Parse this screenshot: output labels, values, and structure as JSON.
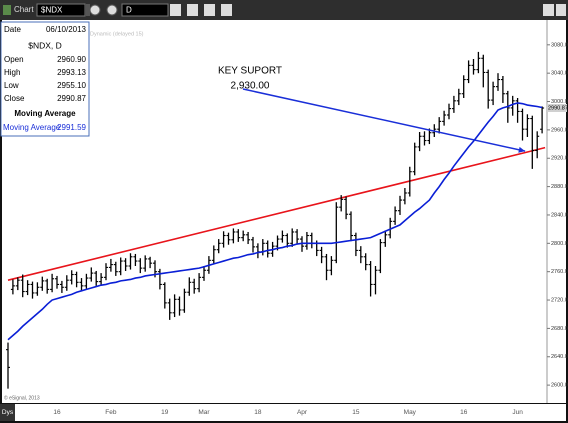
{
  "toolbar": {
    "title": "Chart",
    "interval": "D"
  },
  "info_panel": {
    "date_label": "Date",
    "date": "06/10/2013",
    "symbol": "$NDX, D",
    "rows": [
      {
        "label": "Open",
        "value": "2960.90"
      },
      {
        "label": "High",
        "value": "2993.13"
      },
      {
        "label": "Low",
        "value": "2955.10"
      },
      {
        "label": "Close",
        "value": "2990.87"
      }
    ],
    "study_row": {
      "label": "Moving Average",
      "value": "2991.59"
    }
  },
  "status_text": "Dynamic (delayed 15)",
  "copyright": "© eSignal, 2013",
  "chart_data": {
    "type": "ohlc",
    "x_label": "Dys",
    "categories": [
      null,
      null,
      null,
      null,
      null,
      null,
      null,
      null,
      null,
      null,
      "16",
      null,
      null,
      null,
      null,
      null,
      null,
      null,
      null,
      null,
      null,
      "Feb",
      null,
      null,
      null,
      null,
      null,
      null,
      null,
      null,
      null,
      null,
      "19",
      null,
      null,
      null,
      null,
      null,
      null,
      null,
      "Mar",
      null,
      null,
      null,
      null,
      null,
      null,
      null,
      null,
      null,
      null,
      "18",
      null,
      null,
      null,
      null,
      null,
      null,
      null,
      null,
      "Apr",
      null,
      null,
      null,
      null,
      null,
      null,
      null,
      null,
      null,
      null,
      "15",
      null,
      null,
      null,
      null,
      null,
      null,
      null,
      null,
      null,
      null,
      "May",
      null,
      null,
      null,
      null,
      null,
      null,
      null,
      null,
      null,
      null,
      "16",
      null,
      null,
      null,
      null,
      null,
      null,
      null,
      null,
      null,
      null,
      "Jun",
      null,
      null,
      null,
      null,
      null
    ],
    "series": [
      {
        "name": "$NDX",
        "color": "#000000",
        "open": [
          2650,
          2735,
          2740,
          2748,
          2732,
          2742,
          2730,
          2738,
          2747,
          2735,
          2750,
          2742,
          2738,
          2748,
          2756,
          2745,
          2740,
          2751,
          2758,
          2746,
          2752,
          2766,
          2770,
          2760,
          2775,
          2768,
          2781,
          2775,
          2765,
          2778,
          2772,
          2760,
          2742,
          2716,
          2702,
          2721,
          2706,
          2731,
          2745,
          2736,
          2752,
          2762,
          2776,
          2791,
          2800,
          2811,
          2805,
          2816,
          2808,
          2812,
          2805,
          2795,
          2788,
          2800,
          2786,
          2796,
          2806,
          2811,
          2800,
          2816,
          2806,
          2796,
          2811,
          2800,
          2790,
          2781,
          2762,
          2776,
          2851,
          2862,
          2841,
          2811,
          2790,
          2781,
          2770,
          2742,
          2762,
          2801,
          2812,
          2831,
          2846,
          2861,
          2871,
          2901,
          2936,
          2951,
          2945,
          2956,
          2961,
          2972,
          2981,
          2990,
          3001,
          3011,
          3031,
          3051,
          3045,
          3061,
          3041,
          3002,
          3021,
          3031,
          3011,
          2991,
          3001,
          2986,
          2961,
          2976,
          2931,
          2960.9
        ],
        "high": [
          2660,
          2749,
          2752,
          2756,
          2748,
          2746,
          2745,
          2753,
          2750,
          2757,
          2754,
          2747,
          2755,
          2762,
          2760,
          2751,
          2757,
          2766,
          2761,
          2758,
          2772,
          2778,
          2774,
          2780,
          2779,
          2786,
          2785,
          2779,
          2783,
          2781,
          2776,
          2764,
          2745,
          2722,
          2728,
          2725,
          2736,
          2752,
          2750,
          2758,
          2768,
          2782,
          2797,
          2806,
          2817,
          2815,
          2821,
          2820,
          2818,
          2816,
          2809,
          2800,
          2806,
          2804,
          2802,
          2811,
          2818,
          2814,
          2821,
          2820,
          2810,
          2816,
          2815,
          2804,
          2795,
          2785,
          2782,
          2858,
          2868,
          2866,
          2845,
          2815,
          2796,
          2786,
          2775,
          2768,
          2806,
          2818,
          2836,
          2852,
          2867,
          2878,
          2908,
          2942,
          2957,
          2958,
          2962,
          2968,
          2978,
          2987,
          2997,
          3008,
          3018,
          3037,
          3058,
          3060,
          3070,
          3066,
          3045,
          3028,
          3040,
          3036,
          3015,
          3008,
          3005,
          2990,
          2982,
          2980,
          2958,
          2993.13
        ],
        "low": [
          2595,
          2728,
          2734,
          2724,
          2727,
          2722,
          2726,
          2733,
          2729,
          2731,
          2736,
          2730,
          2733,
          2742,
          2738,
          2733,
          2736,
          2746,
          2740,
          2741,
          2748,
          2760,
          2754,
          2755,
          2761,
          2763,
          2768,
          2758,
          2760,
          2765,
          2752,
          2735,
          2708,
          2692,
          2696,
          2698,
          2702,
          2726,
          2729,
          2731,
          2747,
          2757,
          2771,
          2786,
          2794,
          2798,
          2800,
          2802,
          2803,
          2799,
          2787,
          2779,
          2783,
          2780,
          2781,
          2790,
          2801,
          2794,
          2795,
          2799,
          2788,
          2791,
          2793,
          2782,
          2772,
          2748,
          2755,
          2772,
          2845,
          2834,
          2803,
          2782,
          2772,
          2762,
          2725,
          2728,
          2758,
          2795,
          2807,
          2826,
          2840,
          2855,
          2866,
          2896,
          2930,
          2938,
          2940,
          2950,
          2955,
          2966,
          2975,
          2984,
          2995,
          3005,
          3026,
          3038,
          3040,
          3020,
          2990,
          2995,
          3015,
          2998,
          2970,
          2980,
          2970,
          2945,
          2950,
          2905,
          2920,
          2955.1
        ],
        "close": [
          2625,
          2740,
          2748,
          2732,
          2742,
          2730,
          2738,
          2747,
          2735,
          2750,
          2742,
          2738,
          2748,
          2756,
          2745,
          2740,
          2751,
          2758,
          2746,
          2752,
          2766,
          2770,
          2760,
          2775,
          2768,
          2781,
          2775,
          2765,
          2778,
          2772,
          2760,
          2742,
          2716,
          2702,
          2721,
          2706,
          2731,
          2745,
          2736,
          2752,
          2762,
          2776,
          2791,
          2800,
          2811,
          2805,
          2816,
          2808,
          2812,
          2805,
          2795,
          2788,
          2800,
          2786,
          2796,
          2806,
          2811,
          2800,
          2816,
          2806,
          2796,
          2811,
          2800,
          2790,
          2781,
          2762,
          2776,
          2851,
          2862,
          2841,
          2811,
          2790,
          2781,
          2770,
          2742,
          2762,
          2801,
          2812,
          2831,
          2846,
          2861,
          2871,
          2901,
          2936,
          2951,
          2945,
          2956,
          2961,
          2972,
          2981,
          2990,
          3001,
          3011,
          3031,
          3051,
          3045,
          3061,
          3041,
          3002,
          3021,
          3031,
          3011,
          2991,
          3001,
          2986,
          2961,
          2976,
          2931,
          2951,
          2990.87
        ]
      },
      {
        "name": "Moving Average",
        "color": "#0a1fd6",
        "values": [
          2664,
          2670,
          2676,
          2683,
          2689,
          2695,
          2701,
          2707,
          2714,
          2720,
          2722,
          2724,
          2726,
          2728,
          2731,
          2733,
          2735,
          2737,
          2739,
          2741,
          2742,
          2744,
          2745,
          2747,
          2748,
          2749,
          2751,
          2752,
          2754,
          2755,
          2756,
          2757,
          2758,
          2759,
          2760,
          2761,
          2762,
          2763,
          2764,
          2765,
          2767,
          2769,
          2771,
          2773,
          2775,
          2777,
          2779,
          2780,
          2782,
          2784,
          2785,
          2787,
          2788,
          2790,
          2791,
          2793,
          2794,
          2796,
          2797,
          2799,
          2800,
          2800,
          2800,
          2800,
          2800,
          2800,
          2800,
          2801,
          2802,
          2803,
          2804,
          2805,
          2806,
          2807,
          2808,
          2811,
          2814,
          2817,
          2820,
          2823,
          2826,
          2832,
          2838,
          2844,
          2849,
          2855,
          2861,
          2871,
          2880,
          2890,
          2899,
          2909,
          2918,
          2927,
          2936,
          2944,
          2953,
          2962,
          2971,
          2979,
          2988,
          2991,
          2993,
          2996,
          2998,
          2997,
          2995,
          2994,
          2993,
          2991.59
        ]
      }
    ],
    "trendline": {
      "color": "#e8141b",
      "values": [
        2748,
        2935
      ]
    },
    "annotation": {
      "text": "KEY SUPORT",
      "value": 2930,
      "value_label": "2,930.00",
      "color": "#1a2fd8"
    },
    "ylim": [
      2579,
      3115
    ],
    "yticks": [
      {
        "value": 2600,
        "label": "2600.00"
      },
      {
        "value": 2640,
        "label": "2640.00"
      },
      {
        "value": 2680,
        "label": "2680.00"
      },
      {
        "value": 2720,
        "label": "2720.00"
      },
      {
        "value": 2760,
        "label": "2760.00"
      },
      {
        "value": 2800,
        "label": "2800.00"
      },
      {
        "value": 2840,
        "label": "2840.00"
      },
      {
        "value": 2880,
        "label": "2880.00"
      },
      {
        "value": 2920,
        "label": "2920.00"
      },
      {
        "value": 2960,
        "label": "2960.00"
      },
      {
        "value": 3000,
        "label": "3000.00"
      },
      {
        "value": 3040,
        "label": "3040.00"
      },
      {
        "value": 3080,
        "label": "3080.00"
      }
    ],
    "grid": false
  }
}
